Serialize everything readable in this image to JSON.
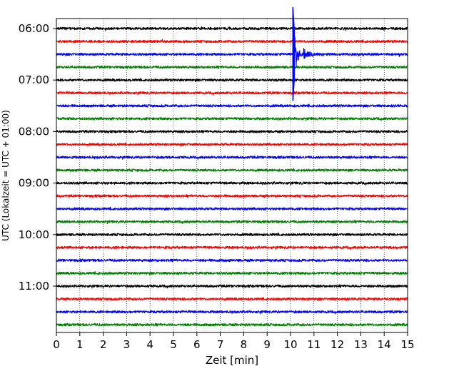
{
  "chart_data": {
    "type": "line",
    "title": "",
    "xlabel": "Zeit  [min]",
    "ylabel": "UTC (Lokalzeit = UTC + 01:00)",
    "xlim": [
      0,
      15
    ],
    "x_ticks": [
      0,
      1,
      2,
      3,
      4,
      5,
      6,
      7,
      8,
      9,
      10,
      11,
      12,
      13,
      14,
      15
    ],
    "y_ticks": [
      "06:00",
      "07:00",
      "08:00",
      "09:00",
      "10:00",
      "11:00"
    ],
    "trace_interval_min": 15,
    "start_time": "06:00",
    "trace_count": 24,
    "trace_colors": [
      "#000000",
      "#ff0000",
      "#0000ff",
      "#008000"
    ],
    "grid_x": true,
    "event": {
      "onset_min": 10.1,
      "trace_start": "06:30",
      "note": "large seismic signal spanning traces 06:00–07:30"
    }
  }
}
